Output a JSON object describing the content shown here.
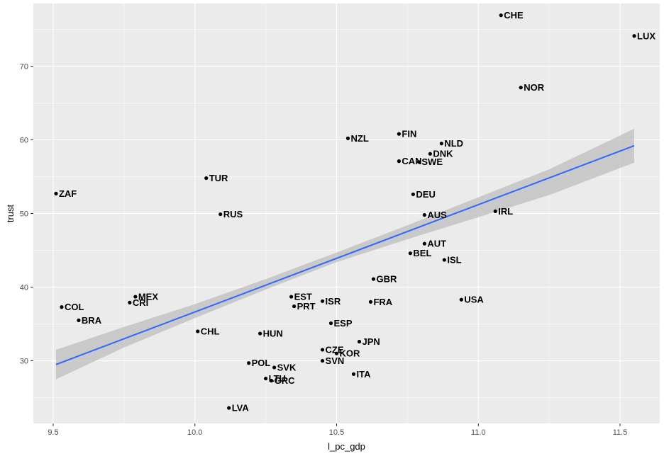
{
  "chart_data": {
    "type": "scatter",
    "xlabel": "l_pc_gdp",
    "ylabel": "trust",
    "xlim": [
      9.43,
      11.64
    ],
    "ylim": [
      21.5,
      78.5
    ],
    "x_ticks": [
      "9.5",
      "10.0",
      "10.5",
      "11.0",
      "11.5"
    ],
    "y_ticks": [
      "30",
      "40",
      "50",
      "60",
      "70"
    ],
    "x_tick_values": [
      9.5,
      10.0,
      10.5,
      11.0,
      11.5
    ],
    "y_tick_values": [
      30,
      40,
      50,
      60,
      70
    ],
    "grid": true,
    "colors": {
      "panel": "#ebebeb",
      "grid": "#ffffff",
      "fit_line": "#3366ff",
      "ribbon": "#bebebe",
      "point": "#000000"
    },
    "points": [
      {
        "label": "CHE",
        "x": 11.08,
        "y": 76.9
      },
      {
        "label": "LUX",
        "x": 11.55,
        "y": 74.1
      },
      {
        "label": "NOR",
        "x": 11.15,
        "y": 67.1
      },
      {
        "label": "NZL",
        "x": 10.54,
        "y": 60.2
      },
      {
        "label": "FIN",
        "x": 10.72,
        "y": 60.8
      },
      {
        "label": "NLD",
        "x": 10.87,
        "y": 59.5
      },
      {
        "label": "DNK",
        "x": 10.83,
        "y": 58.1
      },
      {
        "label": "CAN",
        "x": 10.72,
        "y": 57.1
      },
      {
        "label": "SWE",
        "x": 10.79,
        "y": 57.0
      },
      {
        "label": "TUR",
        "x": 10.04,
        "y": 54.8
      },
      {
        "label": "ZAF",
        "x": 9.51,
        "y": 52.7
      },
      {
        "label": "DEU",
        "x": 10.77,
        "y": 52.6
      },
      {
        "label": "RUS",
        "x": 10.09,
        "y": 49.9
      },
      {
        "label": "AUS",
        "x": 10.81,
        "y": 49.8
      },
      {
        "label": "IRL",
        "x": 11.06,
        "y": 50.3
      },
      {
        "label": "AUT",
        "x": 10.81,
        "y": 45.9
      },
      {
        "label": "BEL",
        "x": 10.76,
        "y": 44.6
      },
      {
        "label": "ISL",
        "x": 10.88,
        "y": 43.7
      },
      {
        "label": "GBR",
        "x": 10.63,
        "y": 41.1
      },
      {
        "label": "MEX",
        "x": 9.79,
        "y": 38.7
      },
      {
        "label": "CRI",
        "x": 9.77,
        "y": 37.9
      },
      {
        "label": "COL",
        "x": 9.53,
        "y": 37.3
      },
      {
        "label": "EST",
        "x": 10.34,
        "y": 38.7
      },
      {
        "label": "ISR",
        "x": 10.45,
        "y": 38.1
      },
      {
        "label": "FRA",
        "x": 10.62,
        "y": 38.0
      },
      {
        "label": "USA",
        "x": 10.94,
        "y": 38.3
      },
      {
        "label": "PRT",
        "x": 10.35,
        "y": 37.4
      },
      {
        "label": "BRA",
        "x": 9.59,
        "y": 35.5
      },
      {
        "label": "ESP",
        "x": 10.48,
        "y": 35.1
      },
      {
        "label": "CHL",
        "x": 10.01,
        "y": 34.0
      },
      {
        "label": "HUN",
        "x": 10.23,
        "y": 33.7
      },
      {
        "label": "JPN",
        "x": 10.58,
        "y": 32.6
      },
      {
        "label": "CZE",
        "x": 10.45,
        "y": 31.5
      },
      {
        "label": "KOR",
        "x": 10.5,
        "y": 31.0
      },
      {
        "label": "SVN",
        "x": 10.45,
        "y": 30.0
      },
      {
        "label": "POL",
        "x": 10.19,
        "y": 29.7
      },
      {
        "label": "SVK",
        "x": 10.28,
        "y": 29.1
      },
      {
        "label": "ITA",
        "x": 10.56,
        "y": 28.2
      },
      {
        "label": "LTU",
        "x": 10.25,
        "y": 27.6
      },
      {
        "label": "GRC",
        "x": 10.27,
        "y": 27.3
      },
      {
        "label": "LVA",
        "x": 10.12,
        "y": 23.6
      }
    ],
    "fit_line": {
      "x": [
        9.51,
        11.55
      ],
      "y": [
        29.5,
        59.2
      ]
    },
    "confidence_band": {
      "x": [
        9.51,
        9.75,
        10.0,
        10.25,
        10.5,
        10.75,
        11.0,
        11.25,
        11.55
      ],
      "lower": [
        27.5,
        31.8,
        35.8,
        39.7,
        43.4,
        46.5,
        49.5,
        52.5,
        56.9
      ],
      "upper": [
        31.5,
        34.6,
        37.7,
        41.1,
        44.7,
        48.4,
        52.2,
        56.0,
        61.5
      ]
    }
  }
}
